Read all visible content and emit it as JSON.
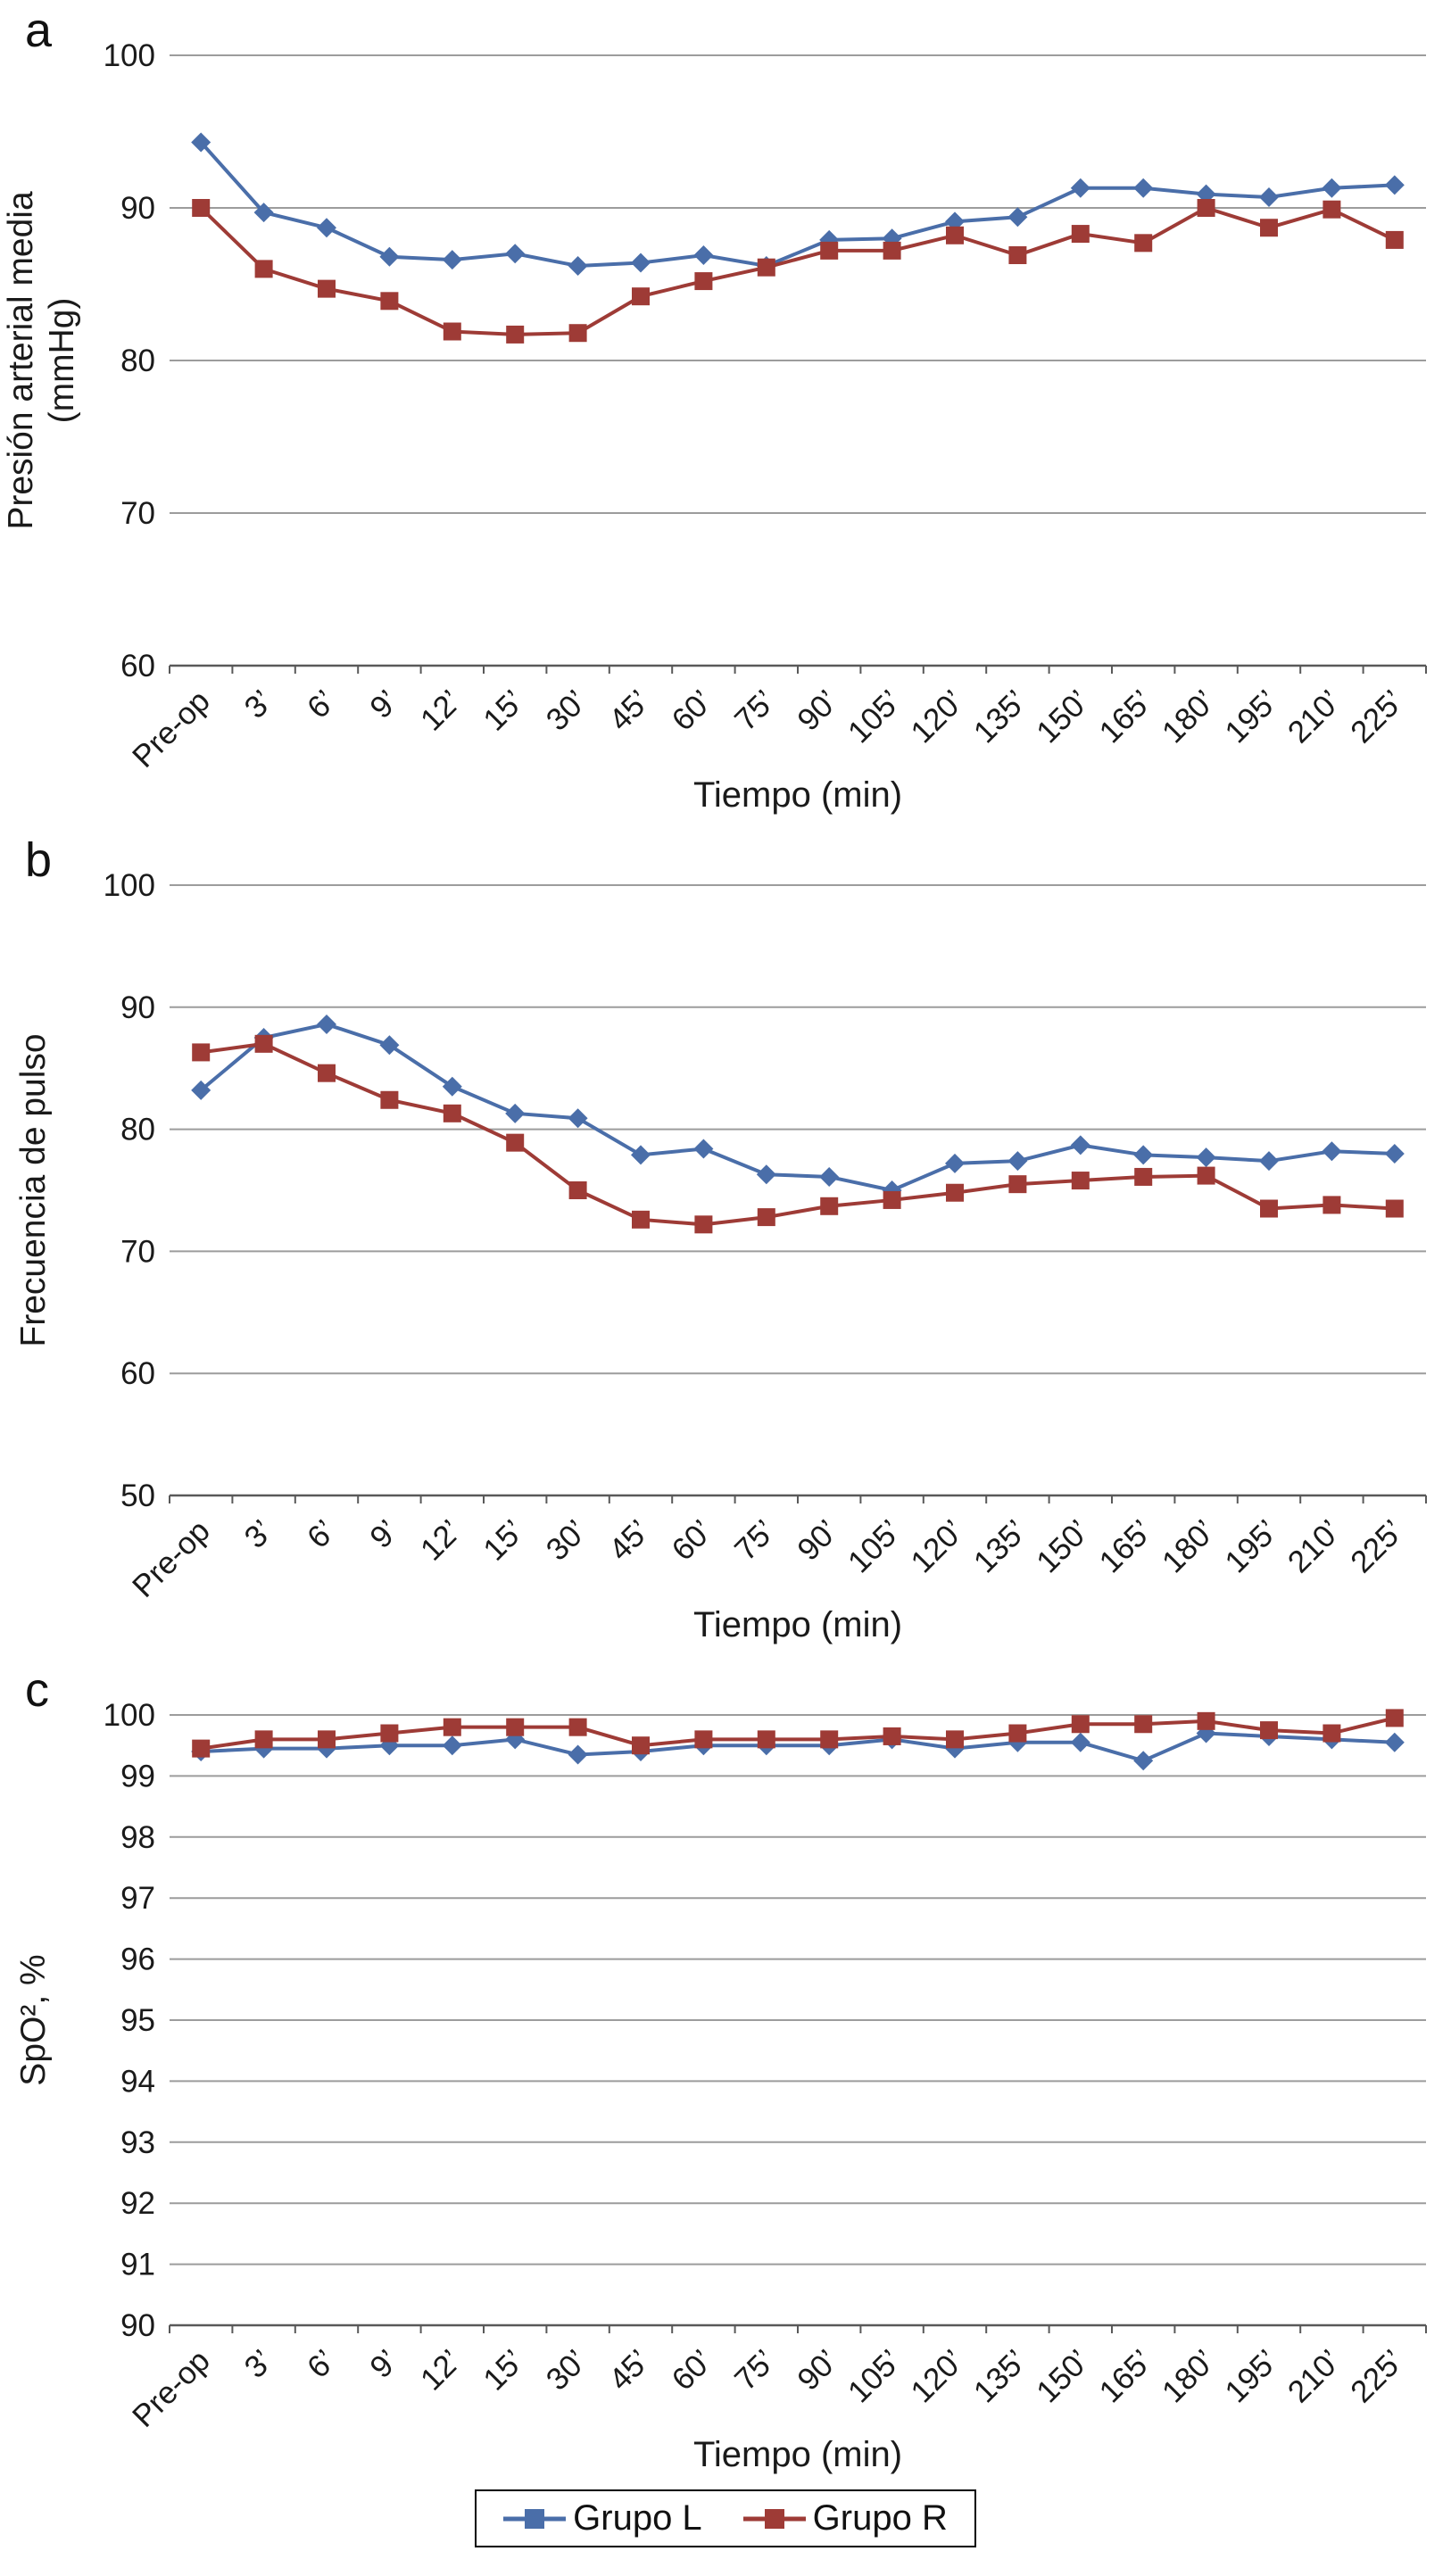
{
  "figure": {
    "panels": [
      "a",
      "b",
      "c"
    ],
    "legend": [
      {
        "label": "Grupo L",
        "color": "#4a6ea9",
        "marker": "square"
      },
      {
        "label": "Grupo R",
        "color": "#9e3b36",
        "marker": "square"
      }
    ],
    "colors": {
      "grupo_l": "#4a6ea9",
      "grupo_r": "#9e3b36",
      "gridline": "#9c9c9c",
      "axis": "#595959",
      "text": "#1a1a1a"
    }
  },
  "chart_data": [
    {
      "type": "line",
      "panel": "a",
      "title": "",
      "ylabel": "Presión arterial media\n(mmHg)",
      "xlabel": "Tiempo (min)",
      "ylim": [
        60,
        100
      ],
      "ytick_step": 10,
      "grid": "horizontal",
      "legend_position": "shared-bottom",
      "categories": [
        "Pre-op",
        "3’",
        "6’",
        "9’",
        "12’",
        "15’",
        "30’",
        "45’",
        "60’",
        "75’",
        "90’",
        "105’",
        "120’",
        "135’",
        "150’",
        "165’",
        "180’",
        "195’",
        "210’",
        "225’"
      ],
      "series": [
        {
          "name": "Grupo L",
          "color": "#4a6ea9",
          "marker": "diamond",
          "values": [
            94.3,
            89.7,
            88.7,
            86.8,
            86.6,
            87.0,
            86.2,
            86.4,
            86.9,
            86.2,
            87.9,
            88.0,
            89.1,
            89.4,
            91.3,
            91.3,
            90.9,
            90.7,
            91.3,
            91.5
          ]
        },
        {
          "name": "Grupo R",
          "color": "#9e3b36",
          "marker": "square",
          "values": [
            90.0,
            86.0,
            84.7,
            83.9,
            81.9,
            81.7,
            81.8,
            84.2,
            85.2,
            86.1,
            87.2,
            87.2,
            88.2,
            86.9,
            88.3,
            87.7,
            90.0,
            88.7,
            89.9,
            87.9
          ]
        }
      ]
    },
    {
      "type": "line",
      "panel": "b",
      "title": "",
      "ylabel": "Frecuencia de pulso",
      "xlabel": "Tiempo (min)",
      "ylim": [
        50,
        100
      ],
      "ytick_step": 10,
      "grid": "horizontal",
      "legend_position": "shared-bottom",
      "categories": [
        "Pre-op",
        "3’",
        "6’",
        "9’",
        "12’",
        "15’",
        "30’",
        "45’",
        "60’",
        "75’",
        "90’",
        "105’",
        "120’",
        "135’",
        "150’",
        "165’",
        "180’",
        "195’",
        "210’",
        "225’"
      ],
      "series": [
        {
          "name": "Grupo L",
          "color": "#4a6ea9",
          "marker": "diamond",
          "values": [
            83.2,
            87.5,
            88.6,
            86.9,
            83.5,
            81.3,
            80.9,
            77.9,
            78.4,
            76.3,
            76.1,
            75.0,
            77.2,
            77.4,
            78.7,
            77.9,
            77.7,
            77.4,
            78.2,
            78.0
          ]
        },
        {
          "name": "Grupo R",
          "color": "#9e3b36",
          "marker": "square",
          "values": [
            86.3,
            87.0,
            84.6,
            82.4,
            81.3,
            78.9,
            75.0,
            72.6,
            72.2,
            72.8,
            73.7,
            74.2,
            74.8,
            75.5,
            75.8,
            76.1,
            76.2,
            73.5,
            73.8,
            73.5
          ]
        }
      ]
    },
    {
      "type": "line",
      "panel": "c",
      "title": "",
      "ylabel": "SpO², %",
      "xlabel": "Tiempo (min)",
      "ylim": [
        90,
        100
      ],
      "ytick_step": 1,
      "grid": "horizontal",
      "legend_position": "shared-bottom",
      "categories": [
        "Pre-op",
        "3’",
        "6’",
        "9’",
        "12’",
        "15’",
        "30’",
        "45’",
        "60’",
        "75’",
        "90’",
        "105’",
        "120’",
        "135’",
        "150’",
        "165’",
        "180’",
        "195’",
        "210’",
        "225’"
      ],
      "series": [
        {
          "name": "Grupo L",
          "color": "#4a6ea9",
          "marker": "diamond",
          "values": [
            99.4,
            99.45,
            99.45,
            99.5,
            99.5,
            99.6,
            99.35,
            99.4,
            99.5,
            99.5,
            99.5,
            99.6,
            99.45,
            99.55,
            99.55,
            99.25,
            99.7,
            99.65,
            99.6,
            99.55
          ]
        },
        {
          "name": "Grupo R",
          "color": "#9e3b36",
          "marker": "square",
          "values": [
            99.45,
            99.6,
            99.6,
            99.7,
            99.8,
            99.8,
            99.8,
            99.5,
            99.6,
            99.6,
            99.6,
            99.65,
            99.6,
            99.7,
            99.85,
            99.85,
            99.9,
            99.75,
            99.7,
            99.95
          ]
        }
      ]
    }
  ]
}
